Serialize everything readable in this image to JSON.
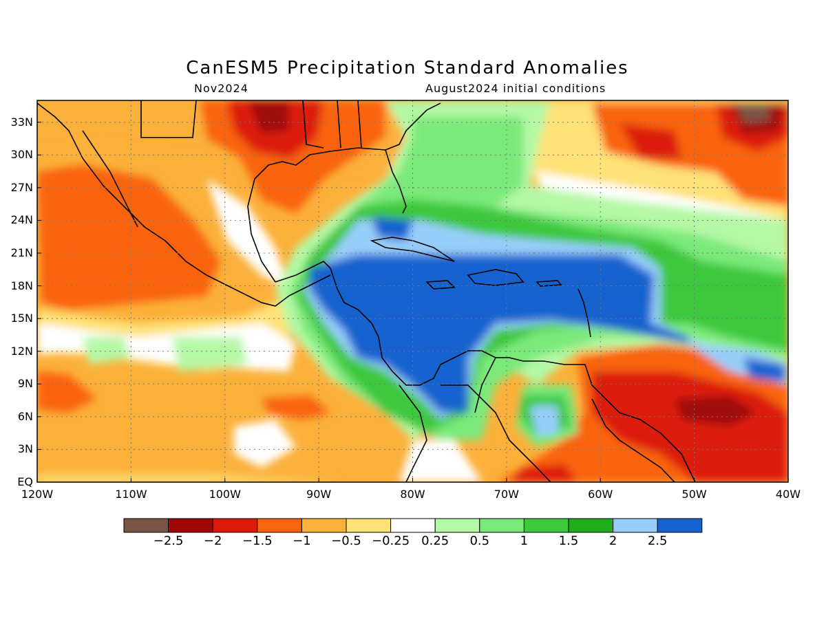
{
  "title": "CanESM5 Precipitation Standard Anomalies",
  "subtitle_left": "Nov2024",
  "subtitle_right": "August2024 initial conditions",
  "map": {
    "lon_range": [
      -120,
      -40
    ],
    "lat_range": [
      0,
      35
    ],
    "lat_ticks": [
      "33N",
      "30N",
      "27N",
      "24N",
      "21N",
      "18N",
      "15N",
      "12N",
      "9N",
      "6N",
      "3N",
      "EQ"
    ],
    "lat_tick_values": [
      33,
      30,
      27,
      24,
      21,
      18,
      15,
      12,
      9,
      6,
      3,
      0
    ],
    "lon_ticks": [
      "120W",
      "110W",
      "100W",
      "90W",
      "80W",
      "70W",
      "60W",
      "50W",
      "40W"
    ],
    "lon_tick_values": [
      -120,
      -110,
      -100,
      -90,
      -80,
      -70,
      -60,
      -50,
      -40
    ]
  },
  "colorbar": {
    "labels": [
      "-2.5",
      "-2",
      "-1.5",
      "-1",
      "-0.5",
      "-0.25",
      "0.25",
      "0.5",
      "1",
      "1.5",
      "2",
      "2.5"
    ],
    "colors": [
      "#7b5446",
      "#a00808",
      "#dc1a08",
      "#f9640f",
      "#fbb03a",
      "#fee177",
      "#ffffff",
      "#b5f8a6",
      "#7ae97a",
      "#3ec83e",
      "#1eae1e",
      "#96cdf9",
      "#1663cf"
    ]
  }
}
